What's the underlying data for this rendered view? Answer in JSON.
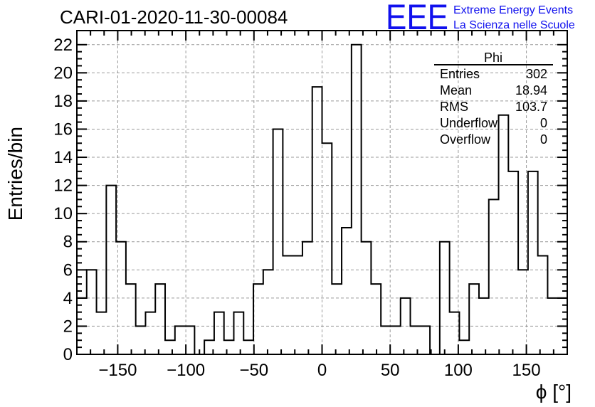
{
  "title": "CARI-01-2020-11-30-00084",
  "logo": {
    "mark": "EEE",
    "line1": "Extreme Energy Events",
    "line2": "La Scienza nelle Scuole",
    "color": "#1010ee"
  },
  "stats": {
    "name": "Phi",
    "rows": [
      {
        "label": "Entries",
        "value": "302"
      },
      {
        "label": "Mean",
        "value": "18.94"
      },
      {
        "label": "RMS",
        "value": "103.7"
      },
      {
        "label": "Underflow",
        "value": "0"
      },
      {
        "label": "Overflow",
        "value": "0"
      }
    ]
  },
  "chart_data": {
    "type": "bar",
    "title": "CARI-01-2020-11-30-00084",
    "xlabel": "ϕ [°]",
    "ylabel": "Entries/bin",
    "xlim": [
      -180,
      180
    ],
    "ylim": [
      0,
      23
    ],
    "bin_width": 7.2,
    "grid": true,
    "x_ticks": [
      -150,
      -100,
      -50,
      0,
      50,
      100,
      150
    ],
    "x_tick_labels": [
      "−150",
      "−100",
      "−50",
      "0",
      "50",
      "100",
      "150"
    ],
    "y_ticks": [
      0,
      2,
      4,
      6,
      8,
      10,
      12,
      14,
      16,
      18,
      20,
      22
    ],
    "y_tick_labels": [
      "0",
      "2",
      "4",
      "6",
      "8",
      "10",
      "12",
      "14",
      "16",
      "18",
      "20",
      "22"
    ],
    "values": [
      4,
      6,
      3,
      12,
      8,
      5,
      2,
      3,
      5,
      1,
      2,
      2,
      0,
      1,
      3,
      1,
      3,
      1,
      5,
      6,
      16,
      7,
      7,
      8,
      19,
      15,
      5,
      9,
      22,
      8,
      5,
      2,
      2,
      4,
      2,
      2,
      0,
      8,
      3,
      1,
      5,
      4,
      11,
      17,
      13,
      6,
      13,
      7,
      4,
      4
    ],
    "line_color": "#000000"
  }
}
